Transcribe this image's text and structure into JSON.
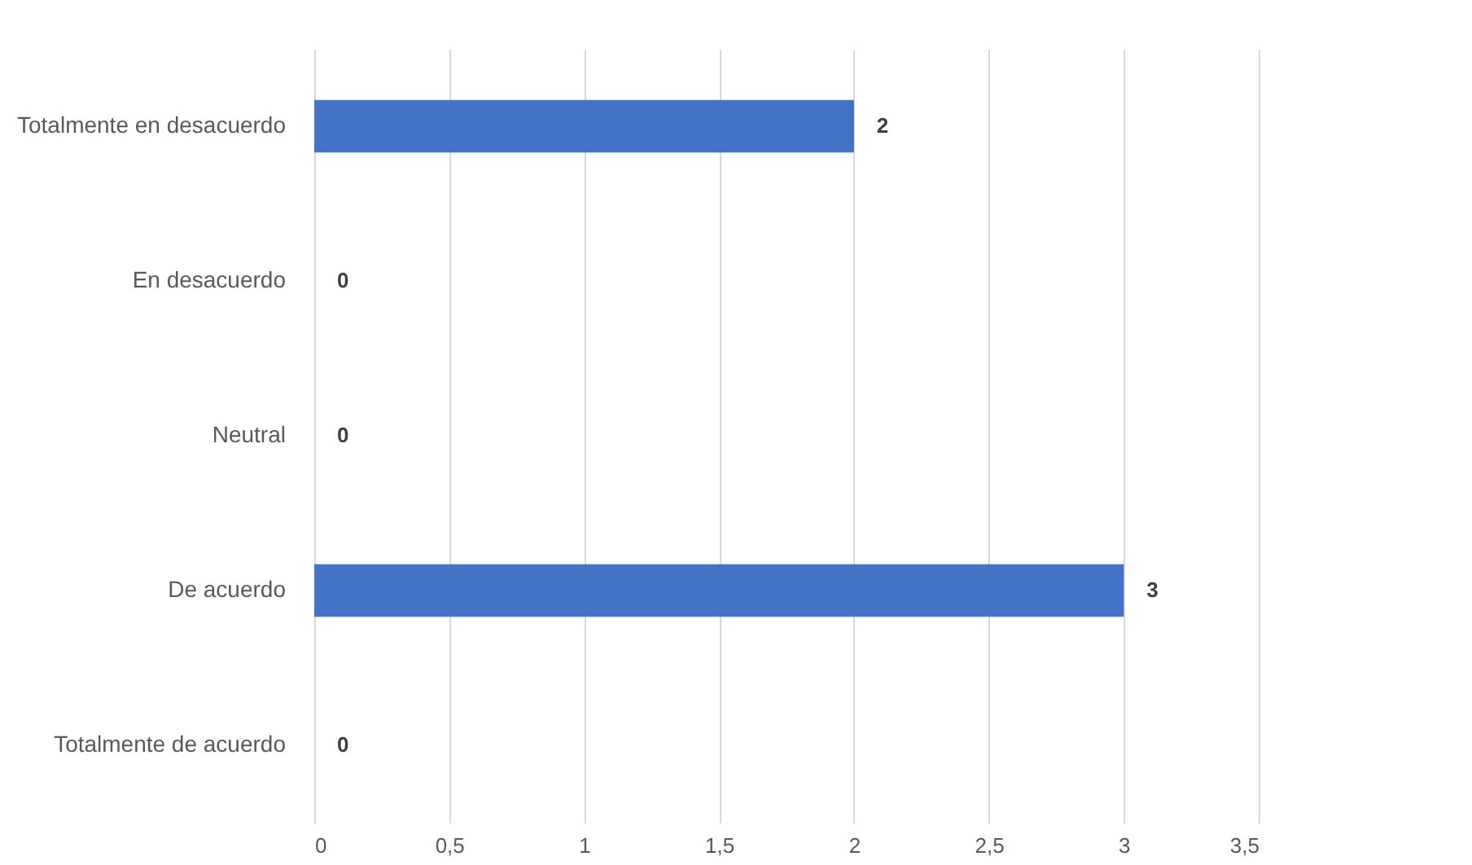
{
  "chart_data": {
    "type": "bar",
    "orientation": "horizontal",
    "categories": [
      "Totalmente en desacuerdo",
      "En desacuerdo",
      "Neutral",
      "De acuerdo",
      "Totalmente de acuerdo"
    ],
    "values": [
      2,
      0,
      0,
      3,
      0
    ],
    "color": "#4472c4",
    "xlim": [
      0,
      3.5
    ],
    "xticks": [
      0,
      {
        "value": 0.5,
        "label": "0,5"
      },
      1,
      {
        "value": 1.5,
        "label": "1,5"
      },
      2,
      {
        "value": 2.5,
        "label": "2,5"
      },
      3,
      {
        "value": 3.5,
        "label": "3,5"
      }
    ],
    "grid": "x",
    "data_labels": true
  }
}
